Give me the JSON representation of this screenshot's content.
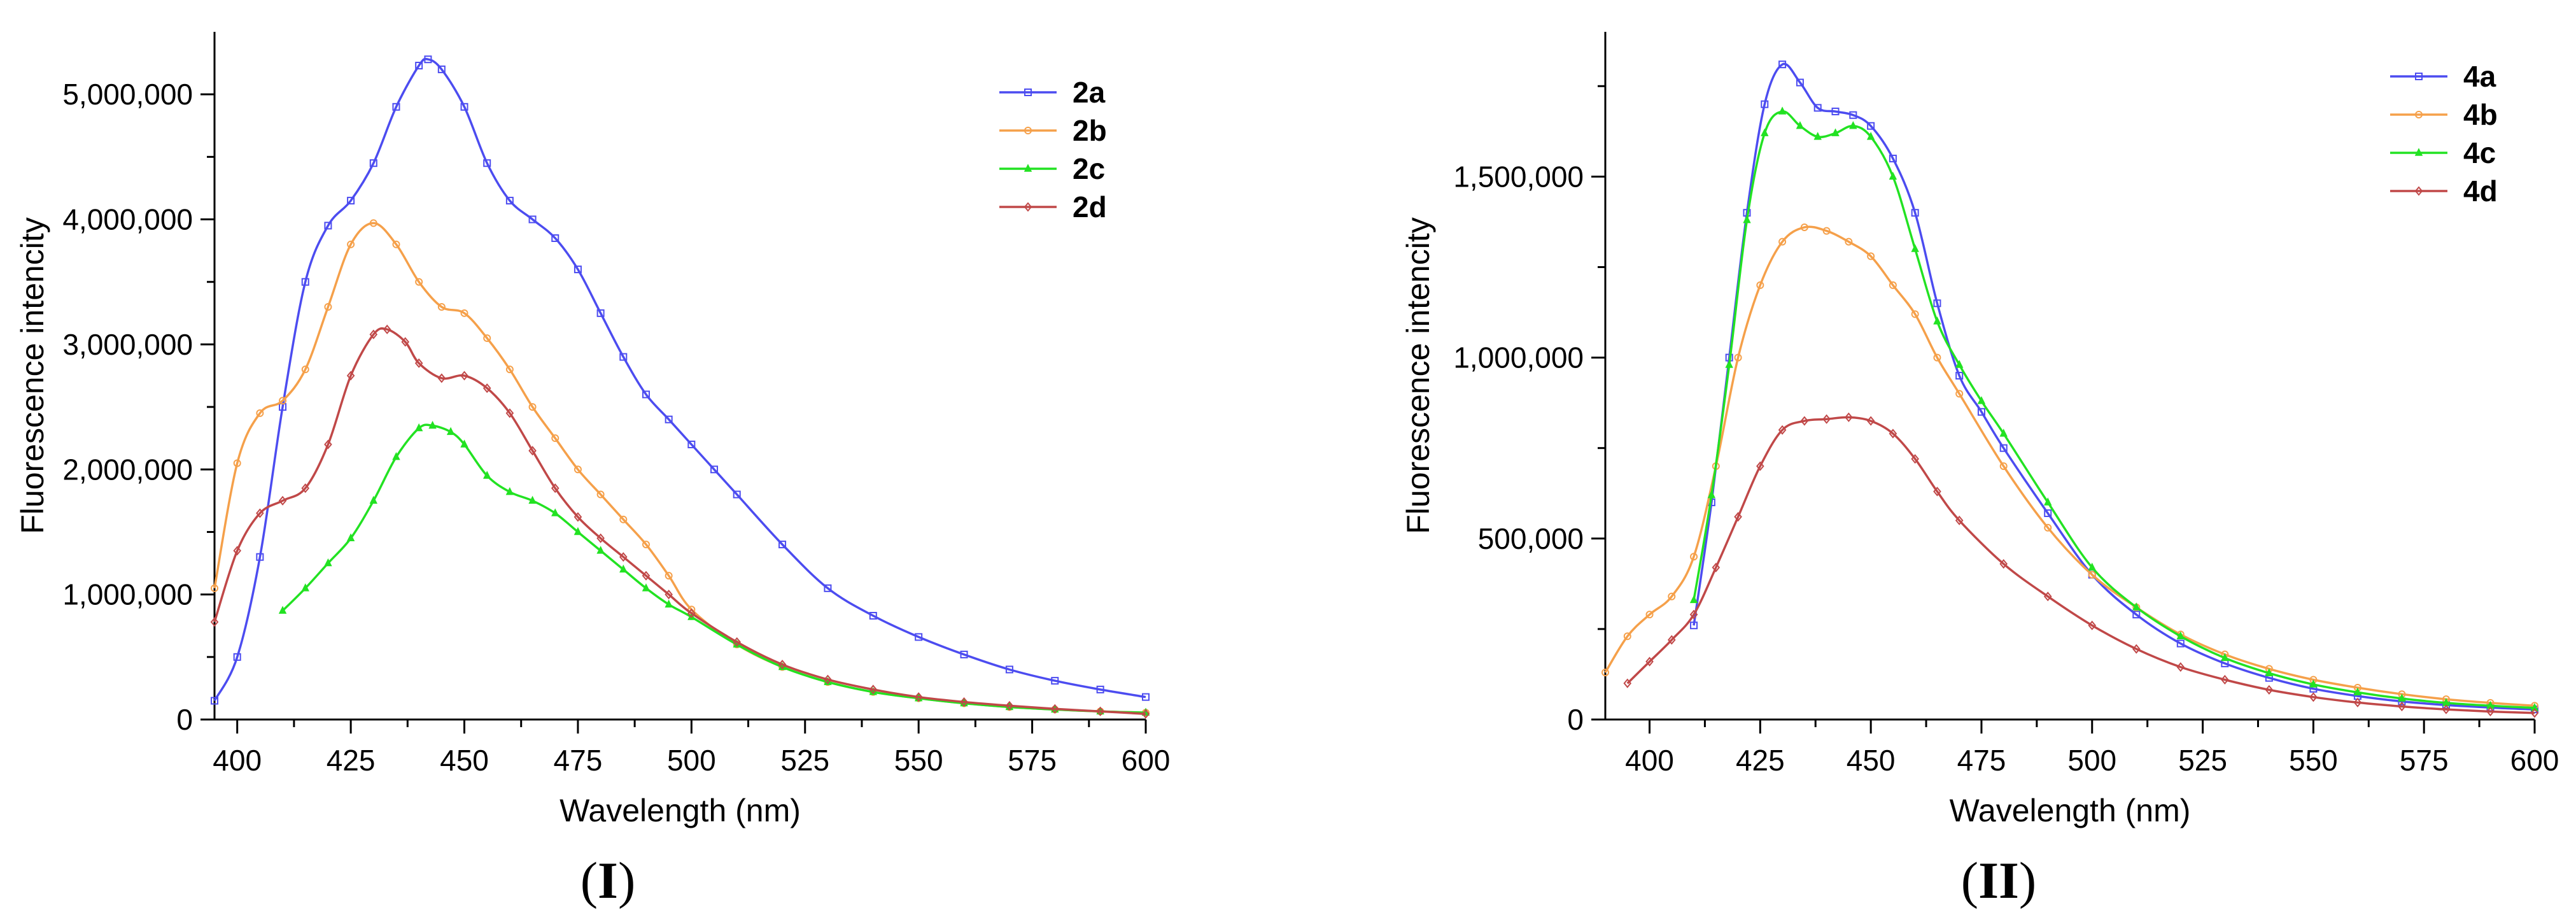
{
  "figure": {
    "panels": [
      {
        "label_open": "(",
        "label_mark": "I",
        "label_close": ")"
      },
      {
        "label_open": "(",
        "label_mark": "II",
        "label_close": ")"
      }
    ]
  },
  "chart_data": [
    {
      "type": "line",
      "title": "",
      "xlabel": "Wavelength (nm)",
      "ylabel": "Fluorescence intencity",
      "xlim": [
        395,
        600
      ],
      "ylim": [
        0,
        5500000
      ],
      "x_ticks": [
        400,
        425,
        450,
        475,
        500,
        525,
        550,
        575,
        600
      ],
      "x_tick_labels": [
        "400",
        "425",
        "450",
        "475",
        "500",
        "525",
        "550",
        "575",
        "600"
      ],
      "y_ticks": [
        0,
        1000000,
        2000000,
        3000000,
        4000000,
        5000000
      ],
      "y_tick_labels": [
        "0",
        "1,000,000",
        "2,000,000",
        "3,000,000",
        "4,000,000",
        "5,000,000"
      ],
      "legend_position": "top-right",
      "grid": false,
      "series": [
        {
          "name": "2a",
          "color": "#4c4cf0",
          "marker": "square",
          "x": [
            395,
            400,
            405,
            410,
            415,
            420,
            425,
            430,
            435,
            440,
            442,
            445,
            450,
            455,
            460,
            465,
            470,
            475,
            480,
            485,
            490,
            495,
            500,
            505,
            510,
            520,
            530,
            540,
            550,
            560,
            570,
            580,
            590,
            600
          ],
          "y": [
            150000,
            500000,
            1300000,
            2500000,
            3500000,
            3950000,
            4150000,
            4450000,
            4900000,
            5230000,
            5280000,
            5200000,
            4900000,
            4450000,
            4150000,
            4000000,
            3850000,
            3600000,
            3250000,
            2900000,
            2600000,
            2400000,
            2200000,
            2000000,
            1800000,
            1400000,
            1050000,
            830000,
            660000,
            520000,
            400000,
            310000,
            240000,
            180000
          ]
        },
        {
          "name": "2b",
          "color": "#f5a04a",
          "marker": "circle",
          "x": [
            395,
            400,
            405,
            410,
            415,
            420,
            425,
            430,
            435,
            440,
            445,
            450,
            455,
            460,
            465,
            470,
            475,
            480,
            485,
            490,
            495,
            500,
            510,
            520,
            530,
            540,
            550,
            560,
            570,
            580,
            590,
            600
          ],
          "y": [
            1050000,
            2050000,
            2450000,
            2550000,
            2800000,
            3300000,
            3800000,
            3970000,
            3800000,
            3500000,
            3300000,
            3250000,
            3050000,
            2800000,
            2500000,
            2250000,
            2000000,
            1800000,
            1600000,
            1400000,
            1150000,
            880000,
            600000,
            420000,
            300000,
            220000,
            170000,
            130000,
            100000,
            80000,
            65000,
            55000
          ]
        },
        {
          "name": "2c",
          "color": "#22e222",
          "marker": "triangle",
          "x": [
            410,
            415,
            420,
            425,
            430,
            435,
            440,
            443,
            447,
            450,
            455,
            460,
            465,
            470,
            475,
            480,
            485,
            490,
            495,
            500,
            510,
            520,
            530,
            540,
            550,
            560,
            570,
            580,
            590,
            600
          ],
          "y": [
            870000,
            1050000,
            1250000,
            1450000,
            1750000,
            2100000,
            2330000,
            2350000,
            2300000,
            2200000,
            1950000,
            1820000,
            1750000,
            1650000,
            1500000,
            1350000,
            1200000,
            1050000,
            920000,
            820000,
            600000,
            420000,
            300000,
            220000,
            170000,
            130000,
            100000,
            80000,
            65000,
            55000
          ]
        },
        {
          "name": "2d",
          "color": "#c04848",
          "marker": "diamond",
          "x": [
            395,
            400,
            405,
            410,
            415,
            420,
            425,
            430,
            433,
            437,
            440,
            445,
            450,
            455,
            460,
            465,
            470,
            475,
            480,
            485,
            490,
            495,
            500,
            510,
            520,
            530,
            540,
            550,
            560,
            570,
            580,
            590,
            600
          ],
          "y": [
            780000,
            1350000,
            1650000,
            1750000,
            1850000,
            2200000,
            2750000,
            3080000,
            3120000,
            3020000,
            2850000,
            2730000,
            2750000,
            2650000,
            2450000,
            2150000,
            1850000,
            1620000,
            1450000,
            1300000,
            1150000,
            1000000,
            850000,
            620000,
            440000,
            320000,
            240000,
            180000,
            140000,
            110000,
            85000,
            65000,
            45000
          ]
        }
      ]
    },
    {
      "type": "line",
      "title": "",
      "xlabel": "Wavelength (nm)",
      "ylabel": "Fluorescence intencity",
      "xlim": [
        390,
        600
      ],
      "ylim": [
        0,
        1900000
      ],
      "x_ticks": [
        400,
        425,
        450,
        475,
        500,
        525,
        550,
        575,
        600
      ],
      "x_tick_labels": [
        "400",
        "425",
        "450",
        "475",
        "500",
        "525",
        "550",
        "575",
        "600"
      ],
      "y_ticks": [
        0,
        500000,
        1000000,
        1500000
      ],
      "y_tick_labels": [
        "0",
        "500,000",
        "1,000,000",
        "1,500,000"
      ],
      "legend_position": "top-right",
      "grid": false,
      "series": [
        {
          "name": "4a",
          "color": "#4c4cf0",
          "marker": "square",
          "x": [
            410,
            414,
            418,
            422,
            426,
            430,
            434,
            438,
            442,
            446,
            450,
            455,
            460,
            465,
            470,
            475,
            480,
            490,
            500,
            510,
            520,
            530,
            540,
            550,
            560,
            570,
            580,
            590,
            600
          ],
          "y": [
            260000,
            600000,
            1000000,
            1400000,
            1700000,
            1810000,
            1760000,
            1690000,
            1680000,
            1670000,
            1640000,
            1550000,
            1400000,
            1150000,
            950000,
            850000,
            750000,
            570000,
            400000,
            290000,
            210000,
            155000,
            115000,
            85000,
            65000,
            50000,
            40000,
            33000,
            28000
          ]
        },
        {
          "name": "4b",
          "color": "#f5a04a",
          "marker": "circle",
          "x": [
            390,
            395,
            400,
            405,
            410,
            415,
            420,
            425,
            430,
            435,
            440,
            445,
            450,
            455,
            460,
            465,
            470,
            480,
            490,
            500,
            510,
            520,
            530,
            540,
            550,
            560,
            570,
            580,
            590,
            600
          ],
          "y": [
            130000,
            230000,
            290000,
            340000,
            450000,
            700000,
            1000000,
            1200000,
            1320000,
            1360000,
            1350000,
            1320000,
            1280000,
            1200000,
            1120000,
            1000000,
            900000,
            700000,
            530000,
            400000,
            310000,
            235000,
            180000,
            140000,
            110000,
            88000,
            70000,
            56000,
            46000,
            38000
          ]
        },
        {
          "name": "4c",
          "color": "#22e222",
          "marker": "triangle",
          "x": [
            410,
            414,
            418,
            422,
            426,
            430,
            434,
            438,
            442,
            446,
            450,
            455,
            460,
            465,
            470,
            475,
            480,
            490,
            500,
            510,
            520,
            530,
            540,
            550,
            560,
            570,
            580,
            590,
            600
          ],
          "y": [
            330000,
            620000,
            980000,
            1380000,
            1620000,
            1680000,
            1640000,
            1610000,
            1620000,
            1640000,
            1610000,
            1500000,
            1300000,
            1100000,
            980000,
            880000,
            790000,
            600000,
            420000,
            310000,
            230000,
            170000,
            128000,
            97000,
            75000,
            58000,
            46000,
            38000,
            32000
          ]
        },
        {
          "name": "4d",
          "color": "#c04848",
          "marker": "diamond",
          "x": [
            395,
            400,
            405,
            410,
            415,
            420,
            425,
            430,
            435,
            440,
            445,
            450,
            455,
            460,
            465,
            470,
            480,
            490,
            500,
            510,
            520,
            530,
            540,
            550,
            560,
            570,
            580,
            590,
            600
          ],
          "y": [
            100000,
            160000,
            220000,
            290000,
            420000,
            560000,
            700000,
            800000,
            825000,
            830000,
            835000,
            825000,
            790000,
            720000,
            630000,
            550000,
            430000,
            340000,
            260000,
            195000,
            145000,
            110000,
            82000,
            62000,
            47000,
            36000,
            28000,
            22000,
            18000
          ]
        }
      ]
    }
  ]
}
